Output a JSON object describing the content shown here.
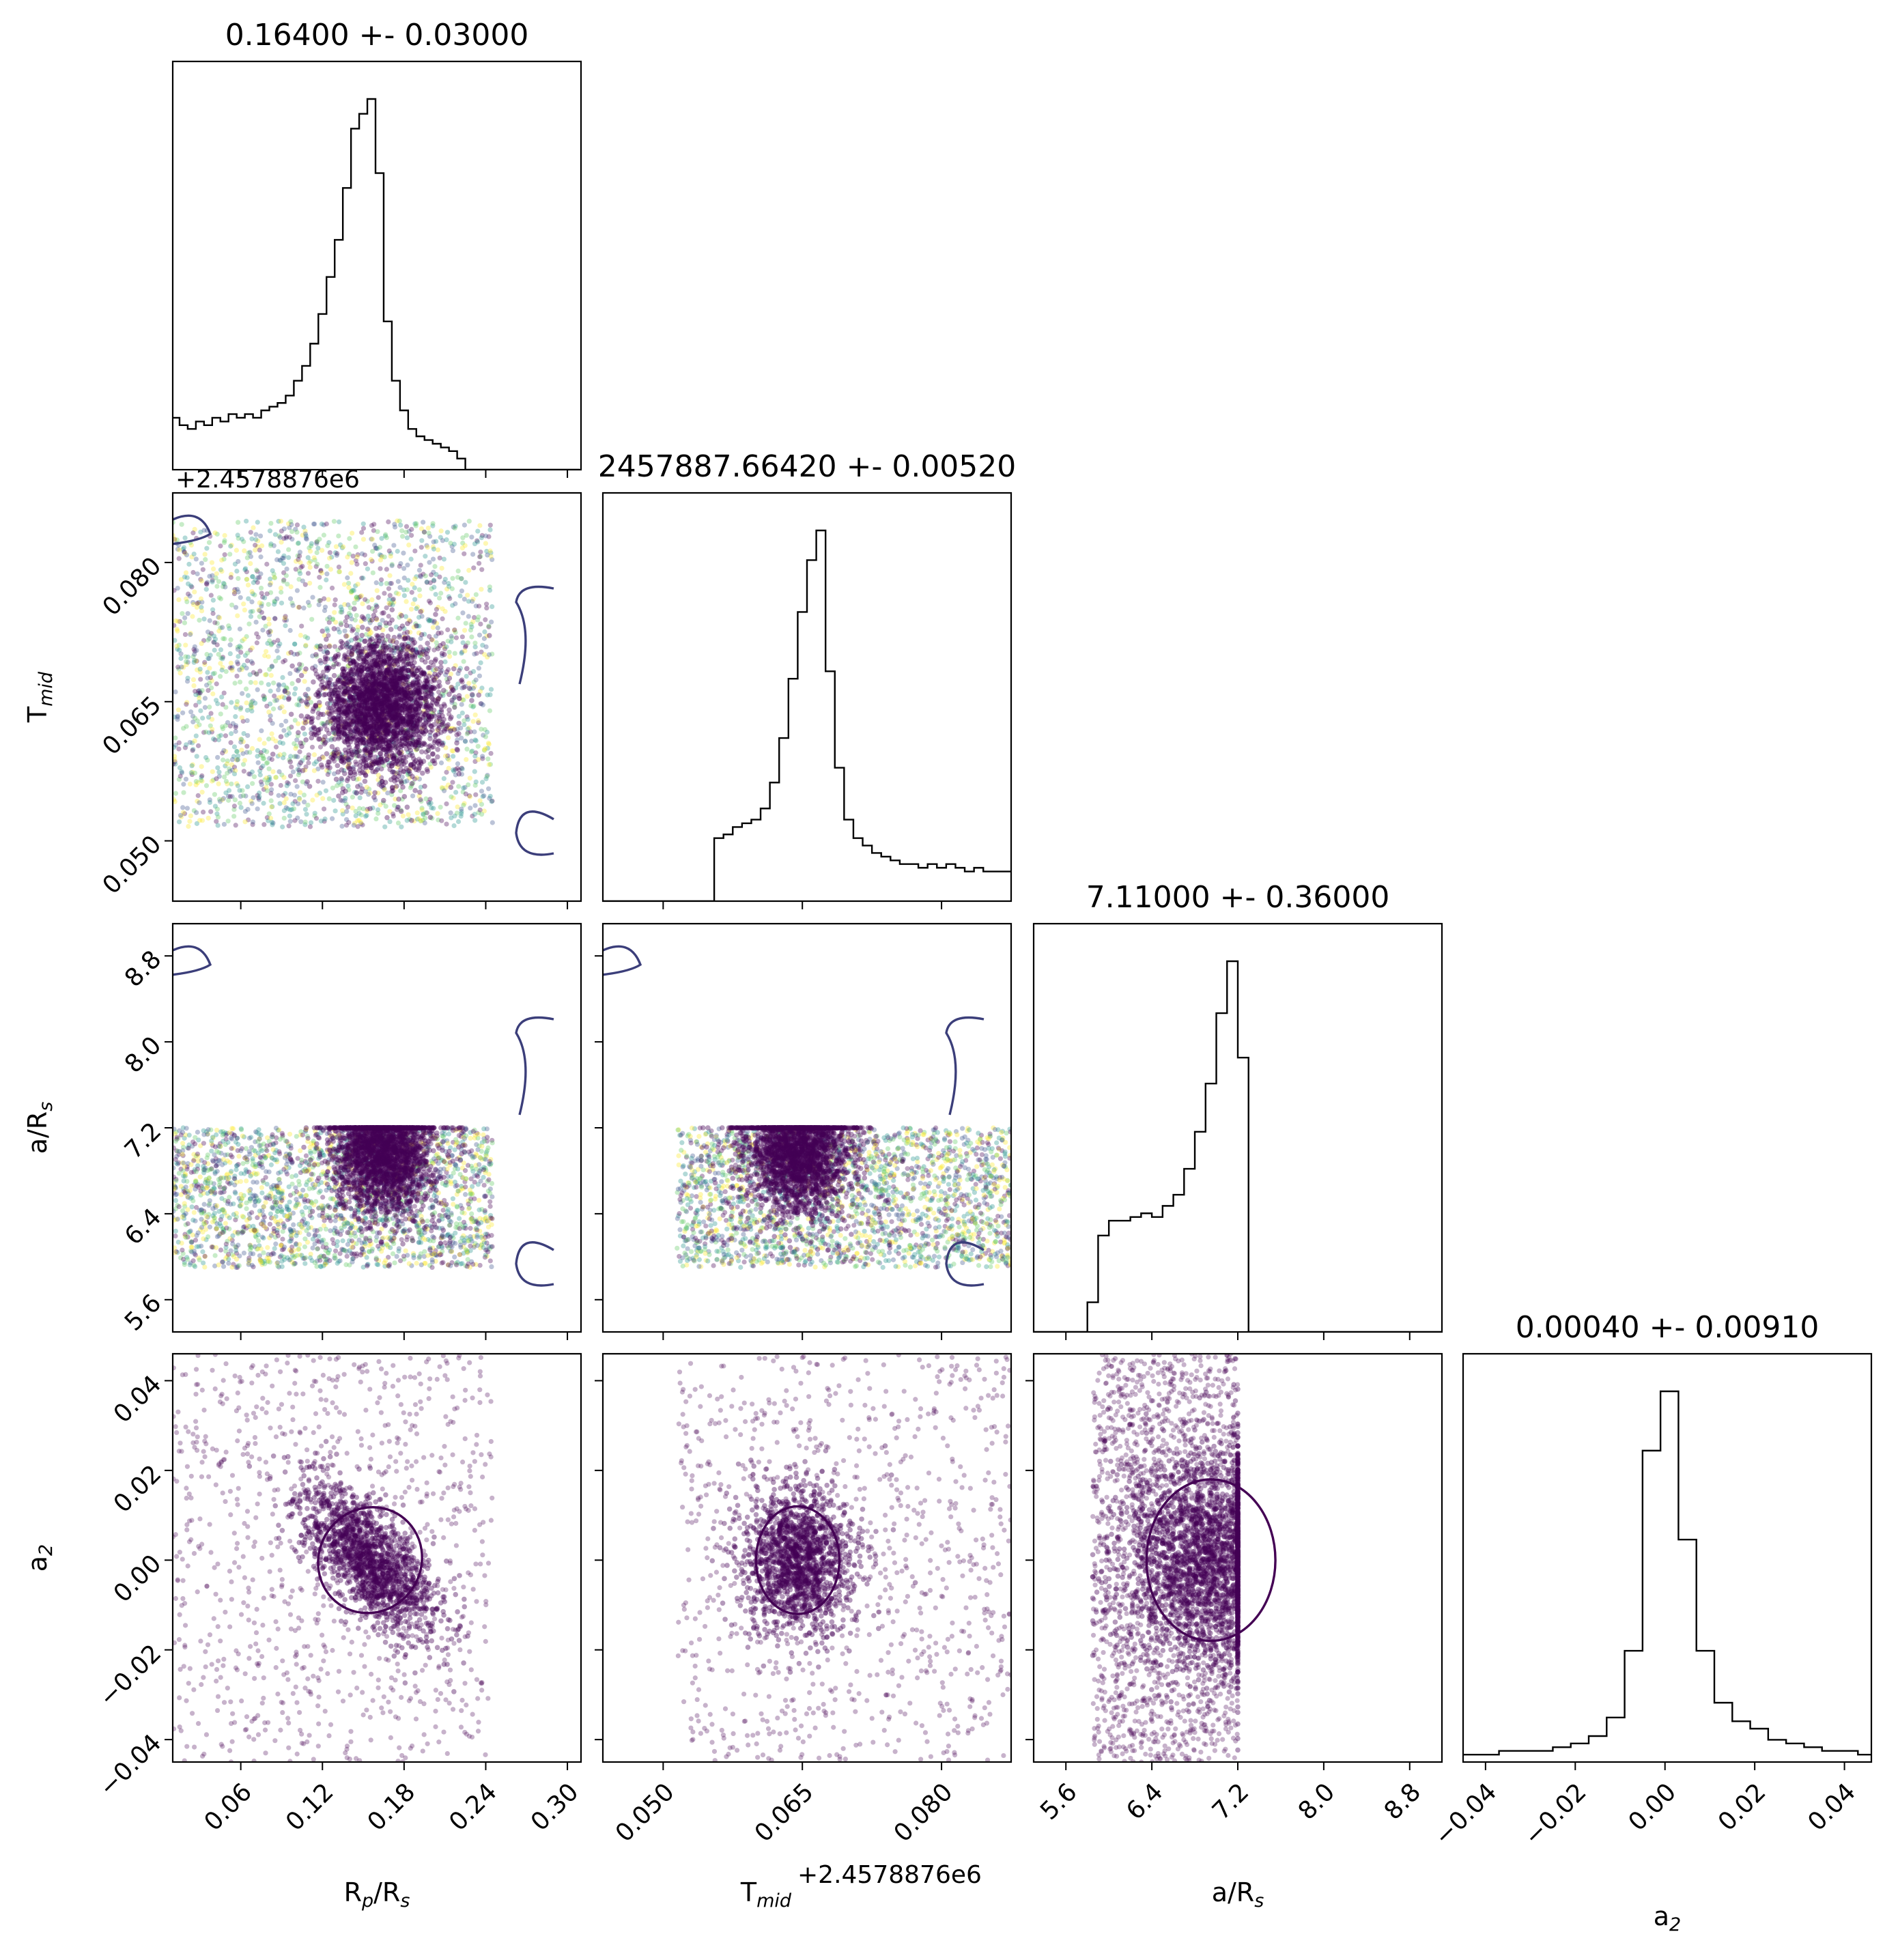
{
  "chart_data": {
    "type": "corner",
    "parameters": [
      {
        "key": "rp",
        "label": "R_p/R_s",
        "range": [
          0.01,
          0.31
        ],
        "ticks": [
          0.06,
          0.12,
          0.18,
          0.24,
          0.3
        ],
        "tick_labels": [
          "0.06",
          "0.12",
          "0.18",
          "0.24",
          "0.30"
        ]
      },
      {
        "key": "tmid",
        "label": "T_mid",
        "range": [
          0.0435,
          0.0875
        ],
        "ticks": [
          0.05,
          0.065,
          0.08
        ],
        "tick_labels": [
          "0.050",
          "0.065",
          "0.080"
        ],
        "offset_label": "+2.4578876e6"
      },
      {
        "key": "ars",
        "label": "a/R_s",
        "range": [
          5.3,
          9.1
        ],
        "ticks": [
          5.6,
          6.4,
          7.2,
          8.0,
          8.8
        ],
        "tick_labels": [
          "5.6",
          "6.4",
          "7.2",
          "8.0",
          "8.8"
        ]
      },
      {
        "key": "a2",
        "label": "a_2",
        "range": [
          -0.045,
          0.046
        ],
        "ticks": [
          -0.04,
          -0.02,
          0.0,
          0.02,
          0.04
        ],
        "tick_labels": [
          "−0.04",
          "−0.02",
          "0.00",
          "0.02",
          "0.04"
        ]
      }
    ],
    "titles": [
      "0.16400 +- 0.03000",
      "2457887.66420 +- 0.00520",
      "7.11000 +- 0.36000",
      "0.00040 +- 0.00910"
    ],
    "axis_labels": {
      "rp": {
        "main": "R",
        "sub": "p",
        "rest": "/R",
        "sub2": "s"
      },
      "tmid": {
        "main": "T",
        "sub": "mid"
      },
      "ars": {
        "main": "a/R",
        "sub": "s"
      },
      "a2": {
        "main": "a",
        "sub": "2"
      }
    },
    "histograms": {
      "rp": {
        "centers": [
          0.012,
          0.018,
          0.024,
          0.03,
          0.036,
          0.042,
          0.048,
          0.054,
          0.06,
          0.066,
          0.072,
          0.078,
          0.084,
          0.09,
          0.096,
          0.102,
          0.108,
          0.114,
          0.12,
          0.126,
          0.132,
          0.138,
          0.144,
          0.15,
          0.156,
          0.162,
          0.168,
          0.174,
          0.18,
          0.186,
          0.192,
          0.198,
          0.204,
          0.21,
          0.216,
          0.222,
          0.228,
          0.234,
          0.24,
          0.246,
          0.252,
          0.258,
          0.264,
          0.27,
          0.276,
          0.282,
          0.288,
          0.294,
          0.3,
          0.306
        ],
        "counts": [
          0.14,
          0.12,
          0.11,
          0.13,
          0.12,
          0.14,
          0.13,
          0.15,
          0.14,
          0.15,
          0.14,
          0.16,
          0.17,
          0.18,
          0.2,
          0.24,
          0.28,
          0.34,
          0.42,
          0.52,
          0.62,
          0.76,
          0.92,
          0.96,
          1.0,
          0.8,
          0.4,
          0.24,
          0.16,
          0.11,
          0.09,
          0.08,
          0.07,
          0.06,
          0.05,
          0.03,
          0,
          0,
          0,
          0,
          0,
          0,
          0,
          0,
          0,
          0,
          0,
          0,
          0,
          0
        ]
      },
      "tmid": {
        "centers": [
          0.044,
          0.045,
          0.046,
          0.047,
          0.048,
          0.049,
          0.05,
          0.051,
          0.052,
          0.053,
          0.054,
          0.055,
          0.056,
          0.057,
          0.058,
          0.059,
          0.06,
          0.061,
          0.062,
          0.063,
          0.064,
          0.065,
          0.066,
          0.067,
          0.068,
          0.069,
          0.07,
          0.071,
          0.072,
          0.073,
          0.074,
          0.075,
          0.076,
          0.077,
          0.078,
          0.079,
          0.08,
          0.081,
          0.082,
          0.083,
          0.084,
          0.085,
          0.086,
          0.087
        ],
        "counts": [
          0,
          0,
          0,
          0,
          0,
          0,
          0,
          0,
          0,
          0,
          0,
          0,
          0.17,
          0.18,
          0.2,
          0.21,
          0.22,
          0.25,
          0.32,
          0.44,
          0.6,
          0.78,
          0.92,
          1.0,
          0.62,
          0.36,
          0.22,
          0.17,
          0.15,
          0.13,
          0.12,
          0.11,
          0.1,
          0.1,
          0.09,
          0.1,
          0.09,
          0.1,
          0.09,
          0.08,
          0.09,
          0.08,
          0.08,
          0.08
        ]
      },
      "ars": {
        "centers": [
          5.35,
          5.45,
          5.55,
          5.65,
          5.75,
          5.85,
          5.95,
          6.05,
          6.15,
          6.25,
          6.35,
          6.45,
          6.55,
          6.65,
          6.75,
          6.85,
          6.95,
          7.05,
          7.15,
          7.25,
          7.35,
          7.45,
          7.55,
          7.65,
          7.75,
          7.85,
          7.95,
          8.05,
          8.15,
          8.25,
          8.35,
          8.45,
          8.55,
          8.65,
          8.75,
          8.85,
          8.95,
          9.05
        ],
        "counts": [
          0,
          0,
          0,
          0,
          0,
          0.08,
          0.26,
          0.3,
          0.3,
          0.31,
          0.32,
          0.31,
          0.34,
          0.37,
          0.44,
          0.54,
          0.67,
          0.86,
          1.0,
          0.74,
          0,
          0,
          0,
          0,
          0,
          0,
          0,
          0,
          0,
          0,
          0,
          0,
          0,
          0,
          0,
          0,
          0,
          0
        ]
      },
      "a2": {
        "centers": [
          -0.043,
          -0.039,
          -0.035,
          -0.031,
          -0.027,
          -0.023,
          -0.019,
          -0.015,
          -0.011,
          -0.007,
          -0.003,
          0.001,
          0.005,
          0.009,
          0.013,
          0.017,
          0.021,
          0.025,
          0.029,
          0.033,
          0.037,
          0.041,
          0.045
        ],
        "counts": [
          0.02,
          0.02,
          0.03,
          0.03,
          0.03,
          0.04,
          0.05,
          0.07,
          0.12,
          0.3,
          0.84,
          1.0,
          0.6,
          0.3,
          0.16,
          0.11,
          0.09,
          0.06,
          0.05,
          0.04,
          0.03,
          0.03,
          0.02
        ]
      }
    },
    "scatter_pairs": [
      {
        "x": "rp",
        "y": "tmid",
        "center": [
          0.163,
          0.0645
        ],
        "spread": [
          0.022,
          0.0035
        ],
        "x_extent": [
          0.01,
          0.245
        ],
        "y_extent": [
          0.0515,
          0.0845
        ],
        "background": "uniform",
        "mixed_colors": true
      },
      {
        "x": "rp",
        "y": "ars",
        "center": [
          0.165,
          7.0
        ],
        "spread": [
          0.018,
          0.3
        ],
        "x_extent": [
          0.01,
          0.245
        ],
        "y_extent": [
          5.9,
          7.2
        ],
        "background": "uniform",
        "mixed_colors": true
      },
      {
        "x": "tmid",
        "y": "ars",
        "center": [
          0.0645,
          7.0
        ],
        "spread": [
          0.0028,
          0.3
        ],
        "x_extent": [
          0.0515,
          0.0875
        ],
        "y_extent": [
          5.9,
          7.2
        ],
        "background": "uniform",
        "mixed_colors": true
      },
      {
        "x": "rp",
        "y": "a2",
        "center": [
          0.155,
          0.0
        ],
        "spread": [
          0.025,
          0.008
        ],
        "correlation": -0.65,
        "x_extent": [
          0.01,
          0.245
        ],
        "y_extent": [
          -0.045,
          0.046
        ],
        "background": "sparse"
      },
      {
        "x": "tmid",
        "y": "a2",
        "center": [
          0.0645,
          0.0
        ],
        "spread": [
          0.003,
          0.008
        ],
        "x_extent": [
          0.0515,
          0.0875
        ],
        "y_extent": [
          -0.045,
          0.046
        ],
        "background": "sparse"
      },
      {
        "x": "ars",
        "y": "a2",
        "center": [
          6.95,
          0.0
        ],
        "spread": [
          0.4,
          0.012
        ],
        "x_extent": [
          5.85,
          7.2
        ],
        "y_extent": [
          -0.045,
          0.046
        ],
        "background": "dense-band"
      }
    ],
    "colors": {
      "hist_line": "#000000",
      "scatter_main": "#440154",
      "contour": "#3b3e7a",
      "contour_dark": "#440154",
      "scatter_palette": [
        "#440154",
        "#3b528b",
        "#21918c",
        "#5ec962",
        "#fde725"
      ]
    }
  }
}
